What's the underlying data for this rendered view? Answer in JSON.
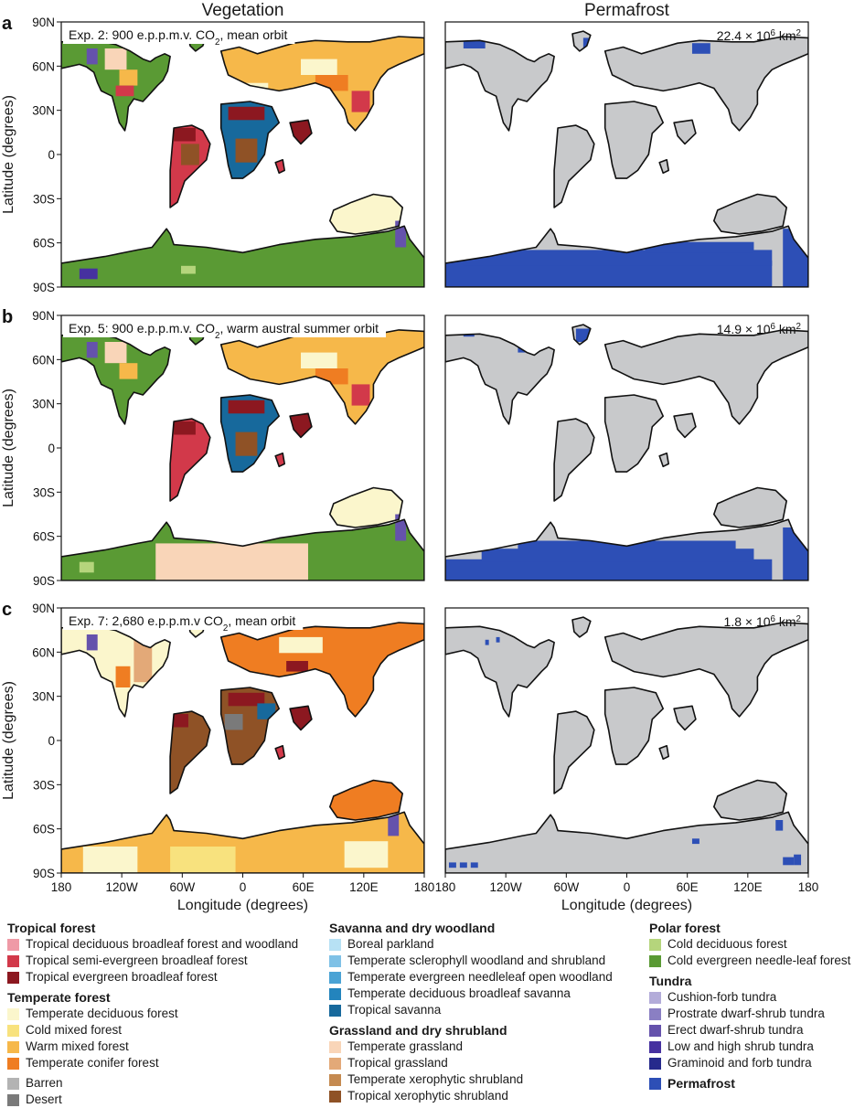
{
  "column_titles": {
    "vegetation": "Vegetation",
    "permafrost": "Permafrost"
  },
  "axes": {
    "ylabel": "Latitude (degrees)",
    "xlabel": "Longitude (degrees)",
    "yticks": [
      "90N",
      "60N",
      "30N",
      "0",
      "30S",
      "60S",
      "90S"
    ],
    "xticks": [
      "180",
      "120W",
      "60W",
      "0",
      "60E",
      "120E",
      "180"
    ]
  },
  "rows": [
    {
      "letter": "a",
      "experiment_label": "Exp. 2: 900 e.p.p.m.v. CO2, mean orbit",
      "permafrost_area": "22.4 × 10^6 km^2",
      "permafrost_area_value_million_km2": 22.4
    },
    {
      "letter": "b",
      "experiment_label": "Exp. 5: 900 e.p.p.m.v. CO2, warm austral summer orbit",
      "permafrost_area": "14.9 × 10^6 km^2",
      "permafrost_area_value_million_km2": 14.9
    },
    {
      "letter": "c",
      "experiment_label": "Exp. 7: 2,680 e.p.p.m.v CO2, mean orbit",
      "permafrost_area": "1.8 × 10^6 km^2",
      "permafrost_area_value_million_km2": 1.8
    }
  ],
  "colors": {
    "land_gray": "#c8c9cb",
    "permafrost": "#2d4fb6",
    "coast": "#111111"
  },
  "legend": {
    "columns": [
      {
        "groups": [
          {
            "title": "Tropical forest",
            "items": [
              {
                "label": "Tropical deciduous broadleaf forest and woodland",
                "color": "#ef9aa6"
              },
              {
                "label": "Tropical semi-evergreen broadleaf forest",
                "color": "#d2394a"
              },
              {
                "label": "Tropical evergreen broadleaf forest",
                "color": "#8c1820"
              }
            ]
          },
          {
            "title": "Temperate forest",
            "items": [
              {
                "label": "Temperate deciduous forest",
                "color": "#fbf6cc"
              },
              {
                "label": "Cold mixed forest",
                "color": "#f8e27e"
              },
              {
                "label": "Warm mixed forest",
                "color": "#f6b84a"
              },
              {
                "label": "Temperate conifer forest",
                "color": "#ef7d22"
              }
            ]
          },
          {
            "title": "",
            "items": [
              {
                "label": "Barren",
                "color": "#b3b3b3"
              },
              {
                "label": "Desert",
                "color": "#7a7a7a"
              }
            ]
          }
        ]
      },
      {
        "groups": [
          {
            "title": "Savanna and dry woodland",
            "items": [
              {
                "label": "Boreal parkland",
                "color": "#b7e1f4"
              },
              {
                "label": "Temperate sclerophyll woodland and shrubland",
                "color": "#7fc1e6"
              },
              {
                "label": "Temperate evergreen needleleaf open woodland",
                "color": "#4aa3d5"
              },
              {
                "label": "Temperate deciduous broadleaf savanna",
                "color": "#2384bd"
              },
              {
                "label": "Tropical savanna",
                "color": "#17699c"
              }
            ]
          },
          {
            "title": "Grassland and dry shrubland",
            "items": [
              {
                "label": "Temperate grassland",
                "color": "#f9d5b8"
              },
              {
                "label": "Tropical grassland",
                "color": "#e3a978"
              },
              {
                "label": "Temperate xerophytic shrubland",
                "color": "#c58a50"
              },
              {
                "label": "Tropical xerophytic shrubland",
                "color": "#8f5226"
              }
            ]
          }
        ]
      },
      {
        "groups": [
          {
            "title": "Polar forest",
            "items": [
              {
                "label": "Cold deciduous forest",
                "color": "#b5d57c"
              },
              {
                "label": "Cold evergreen needle-leaf forest",
                "color": "#5a9a34"
              }
            ]
          },
          {
            "title": "Tundra",
            "items": [
              {
                "label": "Cushion-forb tundra",
                "color": "#b3acd9"
              },
              {
                "label": "Prostrate dwarf-shrub tundra",
                "color": "#8a7fc3"
              },
              {
                "label": "Erect dwarf-shrub tundra",
                "color": "#6552ac"
              },
              {
                "label": "Low and high shrub tundra",
                "color": "#4631a0"
              },
              {
                "label": "Graminoid and forb tundra",
                "color": "#262a8c"
              }
            ]
          },
          {
            "title": "Permafrost",
            "title_swatch": "#2d4fb6",
            "items": []
          }
        ]
      }
    ]
  }
}
